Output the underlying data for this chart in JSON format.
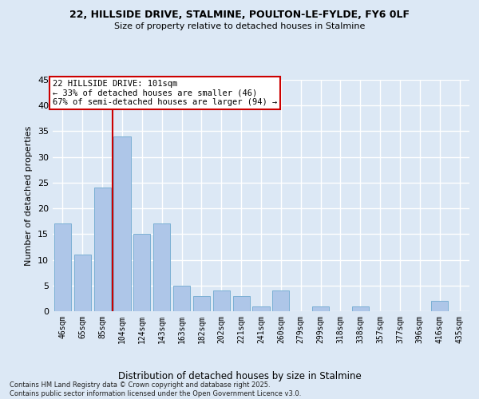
{
  "title1": "22, HILLSIDE DRIVE, STALMINE, POULTON-LE-FYLDE, FY6 0LF",
  "title2": "Size of property relative to detached houses in Stalmine",
  "xlabel": "Distribution of detached houses by size in Stalmine",
  "ylabel": "Number of detached properties",
  "categories": [
    "46sqm",
    "65sqm",
    "85sqm",
    "104sqm",
    "124sqm",
    "143sqm",
    "163sqm",
    "182sqm",
    "202sqm",
    "221sqm",
    "241sqm",
    "260sqm",
    "279sqm",
    "299sqm",
    "318sqm",
    "338sqm",
    "357sqm",
    "377sqm",
    "396sqm",
    "416sqm",
    "435sqm"
  ],
  "values": [
    17,
    11,
    24,
    34,
    15,
    17,
    5,
    3,
    4,
    3,
    1,
    4,
    0,
    1,
    0,
    1,
    0,
    0,
    0,
    2,
    0
  ],
  "bar_color": "#aec6e8",
  "bar_edge_color": "#7aafd4",
  "background_color": "#dce8f5",
  "grid_color": "#ffffff",
  "vline_color": "#cc0000",
  "annotation_text": "22 HILLSIDE DRIVE: 101sqm\n← 33% of detached houses are smaller (46)\n67% of semi-detached houses are larger (94) →",
  "annotation_box_facecolor": "#ffffff",
  "annotation_box_edgecolor": "#cc0000",
  "footer": "Contains HM Land Registry data © Crown copyright and database right 2025.\nContains public sector information licensed under the Open Government Licence v3.0.",
  "ylim": [
    0,
    45
  ],
  "yticks": [
    0,
    5,
    10,
    15,
    20,
    25,
    30,
    35,
    40,
    45
  ],
  "vline_bar_index": 3
}
